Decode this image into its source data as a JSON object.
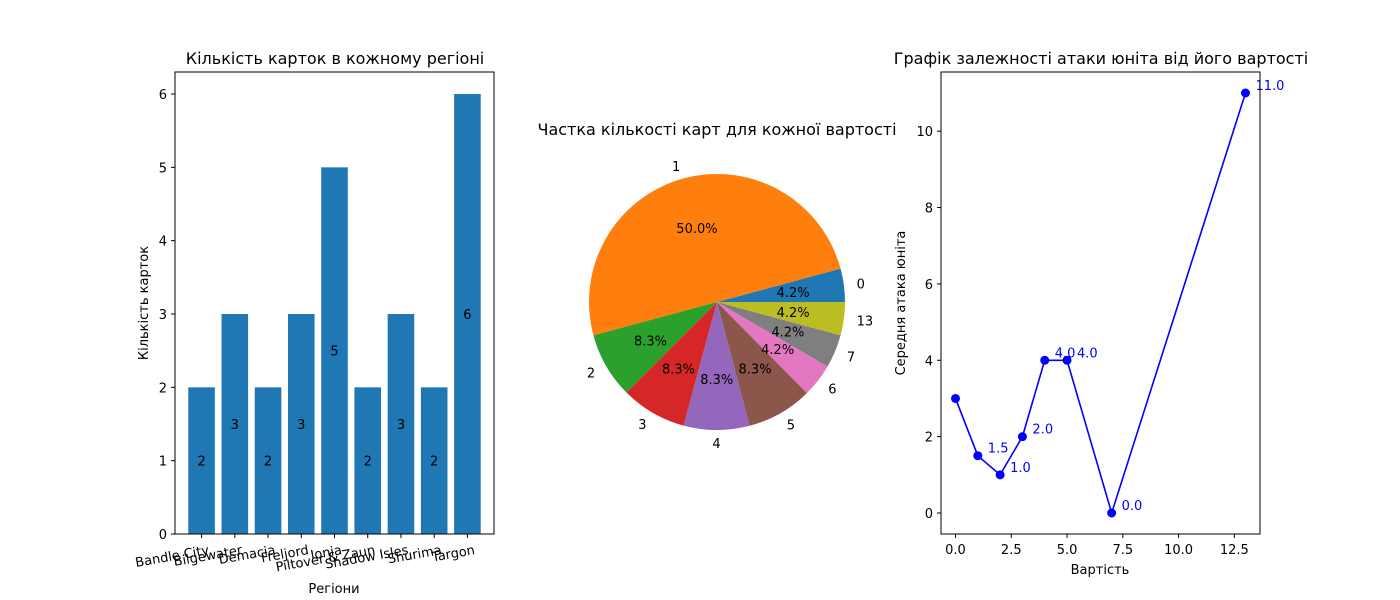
{
  "chart_data": [
    {
      "type": "bar",
      "title": "Кількість карток в кожному регіоні",
      "xlabel": "Регіони",
      "ylabel": "Кількість карток",
      "categories": [
        "Bandle City",
        "Bilgewater",
        "Demacia",
        "Freljord",
        "Ionia",
        "Piltover & Zaun",
        "Shadow Isles",
        "Shurima",
        "Targon"
      ],
      "values": [
        2,
        3,
        2,
        3,
        5,
        2,
        3,
        2,
        6
      ],
      "data_labels": [
        "2",
        "3",
        "2",
        "3",
        "5",
        "2",
        "3",
        "2",
        "6"
      ],
      "ylim": [
        0,
        6.3
      ],
      "yticks": [
        0,
        1,
        2,
        3,
        4,
        5,
        6
      ],
      "ytick_labels": [
        "0",
        "1",
        "2",
        "3",
        "4",
        "5",
        "6"
      ],
      "bar_color": "#1f77b4",
      "grid": false
    },
    {
      "type": "pie",
      "title": "Частка кількості карт для кожної вартості",
      "labels": [
        "0",
        "1",
        "2",
        "3",
        "4",
        "5",
        "6",
        "7",
        "13"
      ],
      "values": [
        4.2,
        50.0,
        8.3,
        8.3,
        8.3,
        8.3,
        4.2,
        4.2,
        4.2
      ],
      "pct_labels": [
        "4.2%",
        "50.0%",
        "8.3%",
        "8.3%",
        "8.3%",
        "8.3%",
        "4.2%",
        "4.2%",
        "4.2%"
      ],
      "colors": [
        "#1f77b4",
        "#ff7f0e",
        "#2ca02c",
        "#d62728",
        "#9467bd",
        "#8c564b",
        "#e377c2",
        "#7f7f7f",
        "#bcbd22"
      ]
    },
    {
      "type": "line",
      "title": "Графік залежності атаки юніта від його вартості",
      "xlabel": "Вартість",
      "ylabel": "Середня атака юніта",
      "x": [
        0,
        1,
        2,
        3,
        4,
        5,
        7,
        13
      ],
      "y": [
        3.0,
        1.5,
        1.0,
        2.0,
        4.0,
        4.0,
        0.0,
        11.0
      ],
      "point_labels": [
        "",
        "1.5",
        "1.0",
        "2.0",
        "4.0",
        "4.0",
        "0.0",
        "11.0"
      ],
      "xlim": [
        -0.65,
        13.65
      ],
      "ylim": [
        -0.55,
        11.55
      ],
      "xticks": [
        0,
        2.5,
        5,
        7.5,
        10,
        12.5
      ],
      "xtick_labels": [
        "0.0",
        "2.5",
        "5.0",
        "7.5",
        "10.0",
        "12.5"
      ],
      "yticks": [
        0,
        2,
        4,
        6,
        8,
        10
      ],
      "ytick_labels": [
        "0",
        "2",
        "4",
        "6",
        "8",
        "10"
      ],
      "line_color": "#0000ff",
      "marker": "circle",
      "grid": false
    }
  ]
}
